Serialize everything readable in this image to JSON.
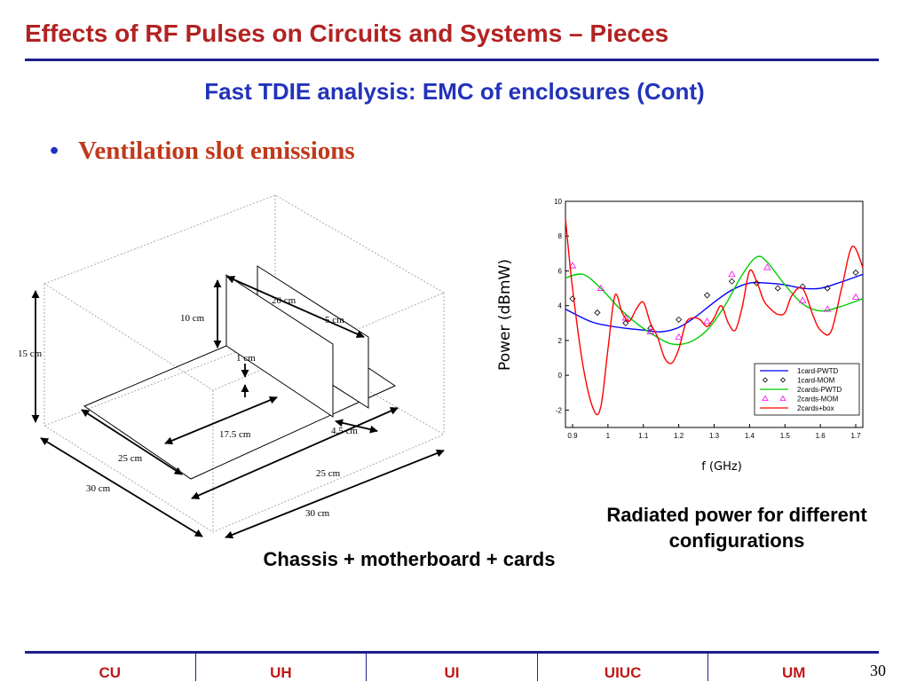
{
  "slide": {
    "title": "Effects of RF Pulses on Circuits and Systems – Pieces",
    "subtitle": "Fast TDIE analysis: EMC of enclosures (Cont)",
    "bullet_mark": "•",
    "bullet_text": "Ventilation slot emissions",
    "caption_left": "Chassis + motherboard + cards",
    "caption_right": "Radiated power for different configurations",
    "page_number": "30"
  },
  "diagram": {
    "labels": {
      "card_width": "20 cm",
      "card_height": "10 cm",
      "card_spacing": "5 cm",
      "enclosure_height": "15 cm",
      "gap": "1 cm",
      "card_offset": "17.5 cm",
      "slot_depth": "4.5 cm",
      "board_depth": "25 cm",
      "board_width": "25 cm",
      "enclosure_depth": "30 cm",
      "enclosure_width": "30 cm"
    }
  },
  "footer": {
    "institutions": [
      "CU",
      "UH",
      "UI",
      "UIUC",
      "UM"
    ]
  },
  "colors": {
    "title": "#b22222",
    "subtitle": "#2233bb",
    "rule": "#1f1f8c",
    "footer_text": "#c01818"
  },
  "chart_data": {
    "type": "line",
    "xlabel": "f (GHz)",
    "ylabel": "Power (dBmW)",
    "xlim": [
      0.88,
      1.72
    ],
    "ylim": [
      -3,
      10
    ],
    "xticks": [
      0.9,
      1,
      1.1,
      1.2,
      1.3,
      1.4,
      1.5,
      1.6,
      1.7
    ],
    "yticks": [
      -2,
      0,
      2,
      4,
      6,
      8,
      10
    ],
    "legend_position": "bottom-right",
    "series": [
      {
        "name": "1card-PWTD",
        "color": "#0000ff",
        "style": "line",
        "x": [
          0.88,
          0.95,
          1.0,
          1.05,
          1.1,
          1.15,
          1.2,
          1.25,
          1.3,
          1.35,
          1.4,
          1.45,
          1.5,
          1.55,
          1.6,
          1.65,
          1.72
        ],
        "y": [
          3.8,
          3.1,
          2.85,
          2.7,
          2.6,
          2.5,
          2.75,
          3.4,
          4.2,
          4.9,
          5.3,
          5.3,
          5.2,
          5.0,
          5.0,
          5.3,
          5.8
        ]
      },
      {
        "name": "1card-MOM",
        "color": "#000000",
        "style": "diamond",
        "x": [
          0.9,
          0.97,
          1.05,
          1.12,
          1.2,
          1.28,
          1.35,
          1.42,
          1.48,
          1.55,
          1.62,
          1.7
        ],
        "y": [
          4.4,
          3.6,
          3.0,
          2.7,
          3.2,
          4.6,
          5.4,
          5.3,
          5.0,
          5.1,
          5.0,
          5.9
        ]
      },
      {
        "name": "2cards-PWTD",
        "color": "#00cc00",
        "style": "line",
        "x": [
          0.88,
          0.93,
          0.98,
          1.03,
          1.08,
          1.13,
          1.18,
          1.23,
          1.28,
          1.33,
          1.38,
          1.42,
          1.45,
          1.5,
          1.55,
          1.6,
          1.65,
          1.72
        ],
        "y": [
          5.6,
          5.8,
          5.0,
          3.9,
          3.0,
          2.3,
          1.8,
          1.9,
          2.6,
          4.0,
          5.8,
          6.8,
          6.5,
          5.2,
          4.1,
          3.7,
          3.9,
          4.4
        ]
      },
      {
        "name": "2cards-MOM",
        "color": "#ff00ff",
        "style": "triangle",
        "x": [
          0.9,
          0.98,
          1.05,
          1.12,
          1.2,
          1.28,
          1.35,
          1.45,
          1.55,
          1.62,
          1.7
        ],
        "y": [
          6.3,
          5.0,
          3.3,
          2.5,
          2.2,
          3.1,
          5.8,
          6.2,
          4.3,
          3.8,
          4.5
        ]
      },
      {
        "name": "2cards+box",
        "color": "#ff0000",
        "style": "line",
        "x": [
          0.88,
          0.9,
          0.93,
          0.96,
          0.98,
          1.0,
          1.02,
          1.04,
          1.06,
          1.08,
          1.1,
          1.12,
          1.14,
          1.16,
          1.18,
          1.2,
          1.22,
          1.24,
          1.26,
          1.28,
          1.3,
          1.32,
          1.34,
          1.36,
          1.38,
          1.4,
          1.42,
          1.44,
          1.46,
          1.48,
          1.5,
          1.52,
          1.55,
          1.58,
          1.6,
          1.63,
          1.66,
          1.69,
          1.72
        ],
        "y": [
          9.0,
          5.0,
          0.5,
          -2.0,
          -1.8,
          1.5,
          4.6,
          3.6,
          3.1,
          3.8,
          4.2,
          3.0,
          2.2,
          1.0,
          0.7,
          1.5,
          3.0,
          3.3,
          3.2,
          2.8,
          3.3,
          4.0,
          3.0,
          2.6,
          4.0,
          6.0,
          5.4,
          4.3,
          3.8,
          3.5,
          3.6,
          4.6,
          5.0,
          3.4,
          2.6,
          2.5,
          5.0,
          7.4,
          6.2
        ]
      }
    ]
  }
}
